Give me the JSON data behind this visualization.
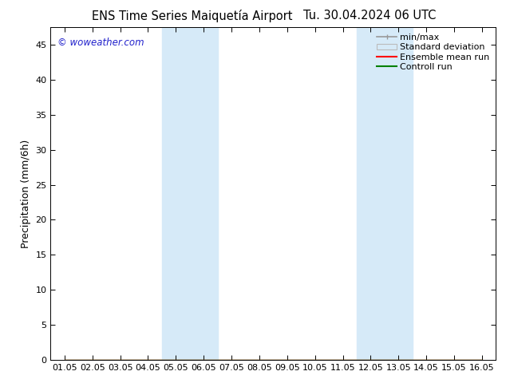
{
  "title_left": "ENS Time Series Maiquetía Airport",
  "title_right": "Tu. 30.04.2024 06 UTC",
  "ylabel": "Precipitation (mm/6h)",
  "ylim": [
    0,
    47.5
  ],
  "yticks": [
    0,
    5,
    10,
    15,
    20,
    25,
    30,
    35,
    40,
    45
  ],
  "x_labels": [
    "01.05",
    "02.05",
    "03.05",
    "04.05",
    "05.05",
    "06.05",
    "07.05",
    "08.05",
    "09.05",
    "10.05",
    "11.05",
    "12.05",
    "13.05",
    "14.05",
    "15.05",
    "16.05"
  ],
  "x_values": [
    0,
    1,
    2,
    3,
    4,
    5,
    6,
    7,
    8,
    9,
    10,
    11,
    12,
    13,
    14,
    15
  ],
  "shaded_regions": [
    {
      "xmin": 3.5,
      "xmax": 5.5
    },
    {
      "xmin": 10.5,
      "xmax": 12.5
    }
  ],
  "shade_color": "#d6eaf8",
  "ensemble_mean": [
    0,
    0,
    0,
    0,
    0,
    0,
    0,
    0,
    0,
    0,
    0,
    0,
    0,
    0,
    0,
    0
  ],
  "control_run": [
    0,
    0,
    0,
    0,
    0,
    0,
    0,
    0,
    0,
    0,
    0,
    0,
    0,
    0,
    0,
    0
  ],
  "min_vals": [
    0,
    0,
    0,
    0,
    0,
    0,
    0,
    0,
    0,
    0,
    0,
    0,
    0,
    0,
    0,
    0
  ],
  "max_vals": [
    0,
    0,
    0,
    0,
    0,
    0,
    0,
    0,
    0,
    0,
    0,
    0,
    0,
    0,
    0,
    0
  ],
  "ensemble_mean_color": "#ff0000",
  "control_run_color": "#008000",
  "minmax_color": "#999999",
  "watermark": "© woweather.com",
  "watermark_color": "#2222cc",
  "background_color": "#ffffff",
  "legend_labels": [
    "min/max",
    "Standard deviation",
    "Ensemble mean run",
    "Controll run"
  ],
  "title_fontsize": 10.5,
  "tick_fontsize": 8,
  "ylabel_fontsize": 9,
  "legend_fontsize": 8
}
